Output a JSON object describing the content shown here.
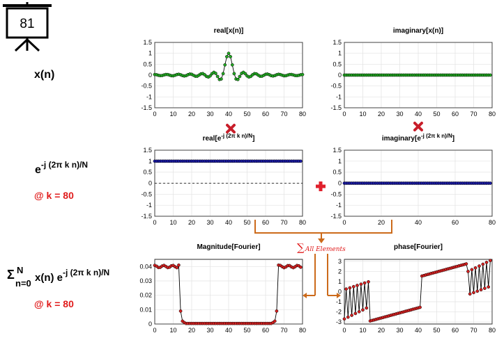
{
  "board": {
    "number": "81"
  },
  "labels": {
    "xn": "x(n)",
    "exp_base": "e",
    "exp_power": "-j (2π k n)/N",
    "k1": "@ k = 80",
    "sigma": "Σ",
    "sum_top": "N",
    "sum_bottom": "n=0",
    "sum_body": "x(n) e",
    "sum_power": "-j (2π k n)/N",
    "k2": "@ k = 80",
    "all_elements": "All Elements"
  },
  "colors": {
    "green": "#22a822",
    "blue": "#1a1aa8",
    "red_marker": "#d42020",
    "orange": "#cc6a1a",
    "op_red": "#e0202c",
    "text_red": "#e01b1b"
  },
  "chart_data": [
    {
      "id": "real_xn",
      "type": "line",
      "title": "real[x(n)]",
      "xlim": [
        0,
        80
      ],
      "ylim": [
        -1.5,
        1.5
      ],
      "xticks": [
        "0",
        "10",
        "20",
        "30",
        "40",
        "50",
        "60",
        "70",
        "80"
      ],
      "yticks": [
        "1.5",
        "1",
        "0.5",
        "0",
        "-0.5",
        "-1",
        "-1.5"
      ],
      "marker_color": "#22a822",
      "grid": true,
      "series_fn": "sinc"
    },
    {
      "id": "imag_xn",
      "type": "line",
      "title": "imaginary[x(n)]",
      "xlim": [
        0,
        80
      ],
      "ylim": [
        -1.5,
        1.5
      ],
      "xticks": [
        "0",
        "10",
        "20",
        "30",
        "40",
        "50",
        "60",
        "70",
        "80"
      ],
      "yticks": [
        "1.5",
        "1",
        "0.5",
        "0",
        "-0.5",
        "-1",
        "-1.5"
      ],
      "marker_color": "#22a822",
      "grid": true,
      "constant": 0
    },
    {
      "id": "real_exp",
      "type": "line",
      "title": "real[e",
      "title_sup": "-j (2π k n)/N",
      "title_end": "]",
      "xlim": [
        0,
        80
      ],
      "ylim": [
        -1.5,
        1.5
      ],
      "xticks": [
        "0",
        "10",
        "20",
        "30",
        "40",
        "50",
        "60",
        "70",
        "80"
      ],
      "yticks": [
        "1.5",
        "1",
        "0.5",
        "0",
        "-0.5",
        "-1",
        "-1.5"
      ],
      "marker_color": "#1a1aa8",
      "grid": true,
      "constant": 1,
      "dashed_zero": true
    },
    {
      "id": "imag_exp",
      "type": "line",
      "title": "imaginary[e",
      "title_sup": "-j (2π k n)/N",
      "title_end": "]",
      "xlim": [
        0,
        80
      ],
      "ylim": [
        -1.5,
        1.5
      ],
      "xticks": [
        "0",
        "20",
        "40",
        "60",
        "80"
      ],
      "yticks": [
        "1.5",
        "1",
        "0.5",
        "0",
        "-0.5",
        "-1",
        "-1.5"
      ],
      "marker_color": "#1a1aa8",
      "grid": true,
      "constant": 0
    },
    {
      "id": "mag_fourier",
      "type": "line",
      "title": "Magnitude[Fourier]",
      "xlim": [
        0,
        80
      ],
      "ylim": [
        0,
        0.045
      ],
      "xticks": [
        "0",
        "10",
        "20",
        "30",
        "40",
        "50",
        "60",
        "70",
        "80"
      ],
      "yticks": [
        "0.04",
        "0.03",
        "0.02",
        "0.01",
        "0"
      ],
      "ytick_values": [
        0.04,
        0.03,
        0.02,
        0.01,
        0
      ],
      "marker_color": "#d42020",
      "grid": true,
      "series_fn": "rect_mag"
    },
    {
      "id": "phase_fourier",
      "type": "line",
      "title": "phase[Fourier]",
      "xlim": [
        0,
        80
      ],
      "ylim": [
        -3.2,
        3.2
      ],
      "xticks": [
        "0",
        "10",
        "20",
        "30",
        "40",
        "50",
        "60",
        "70",
        "80"
      ],
      "yticks": [
        "3",
        "2",
        "1",
        "0",
        "-1",
        "-2",
        "-3"
      ],
      "ytick_values": [
        3,
        2,
        1,
        0,
        -1,
        -2,
        -3
      ],
      "marker_color": "#d42020",
      "grid": true,
      "series_fn": "phase"
    }
  ]
}
